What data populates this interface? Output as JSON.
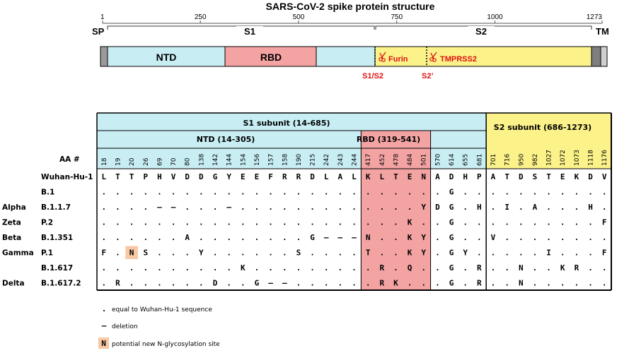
{
  "protein": {
    "title": "SARS-CoV-2 spike protein structure",
    "length": 1273,
    "ruler_ticks": [
      "1",
      "250",
      "500",
      "750",
      "1000",
      "1273"
    ],
    "labels": {
      "sp": "SP",
      "s1": "S1",
      "s2": "S2",
      "tm": "TM"
    },
    "domains": {
      "ntd": "NTD",
      "rbd": "RBD",
      "furin": "Furin",
      "tmprss2": "TMPRSS2",
      "s1s2": "S1/S2",
      "s2prime": "S2’"
    },
    "colors": {
      "ntd": "#c8eef4",
      "rbd": "#f4a3a3",
      "s2": "#fbf28a",
      "sp_tm": "#9a9a9a",
      "cleavage": "#e01010",
      "glyco": "#f8c8a4"
    }
  },
  "table": {
    "s1_header": "S1 subunit (14-685)",
    "s2_header": "S2 subunit (686-1273)",
    "ntd_header": "NTD (14-305)",
    "rbd_header": "RBD (319-541)",
    "aa_label": "AA #",
    "positions": [
      "18",
      "19",
      "20",
      "26",
      "69",
      "70",
      "80",
      "138",
      "142",
      "144",
      "154",
      "156",
      "157",
      "158",
      "190",
      "215",
      "242",
      "243",
      "244",
      "417",
      "452",
      "478",
      "484",
      "501",
      "570",
      "614",
      "655",
      "681",
      "701",
      "716",
      "950",
      "982",
      "1027",
      "1072",
      "1073",
      "1118",
      "1176"
    ],
    "rows": [
      {
        "lineage": "",
        "name": "Wuhan-Hu-1",
        "cells": [
          "L",
          "T",
          "T",
          "P",
          "H",
          "V",
          "D",
          "D",
          "G",
          "Y",
          "E",
          "E",
          "F",
          "R",
          "R",
          "D",
          "L",
          "A",
          "L",
          "K",
          "L",
          "T",
          "E",
          "N",
          "A",
          "D",
          "H",
          "P",
          "A",
          "T",
          "D",
          "S",
          "T",
          "E",
          "K",
          "D",
          "V"
        ]
      },
      {
        "lineage": "",
        "name": "B.1",
        "cells": [
          ".",
          ".",
          ".",
          ".",
          ".",
          ".",
          ".",
          ".",
          ".",
          ".",
          ".",
          ".",
          ".",
          ".",
          ".",
          ".",
          ".",
          ".",
          ".",
          ".",
          ".",
          ".",
          ".",
          ".",
          ".",
          "G",
          ".",
          ".",
          ".",
          ".",
          ".",
          ".",
          ".",
          ".",
          ".",
          ".",
          "."
        ]
      },
      {
        "lineage": "Alpha",
        "name": "B.1.1.7",
        "cells": [
          ".",
          ".",
          ".",
          ".",
          "–",
          "–",
          ".",
          ".",
          ".",
          "–",
          ".",
          ".",
          ".",
          ".",
          ".",
          ".",
          ".",
          ".",
          ".",
          ".",
          ".",
          ".",
          ".",
          "Y",
          "D",
          "G",
          ".",
          "H",
          ".",
          "I",
          ".",
          "A",
          ".",
          ".",
          ".",
          "H",
          "."
        ]
      },
      {
        "lineage": "Zeta",
        "name": "P.2",
        "cells": [
          ".",
          ".",
          ".",
          ".",
          ".",
          ".",
          ".",
          ".",
          ".",
          ".",
          ".",
          ".",
          ".",
          ".",
          ".",
          ".",
          ".",
          ".",
          ".",
          ".",
          ".",
          ".",
          "K",
          ".",
          ".",
          "G",
          ".",
          ".",
          ".",
          ".",
          ".",
          ".",
          ".",
          ".",
          ".",
          ".",
          "F"
        ]
      },
      {
        "lineage": "Beta",
        "name": "B.1.351",
        "cells": [
          ".",
          ".",
          ".",
          ".",
          ".",
          ".",
          "A",
          ".",
          ".",
          ".",
          ".",
          ".",
          ".",
          ".",
          ".",
          "G",
          "–",
          "–",
          "–",
          "N",
          ".",
          ".",
          "K",
          "Y",
          ".",
          "G",
          ".",
          ".",
          "V",
          ".",
          ".",
          ".",
          ".",
          ".",
          ".",
          ".",
          "."
        ]
      },
      {
        "lineage": "Gamma",
        "name": "P.1",
        "cells": [
          "F",
          ".",
          "N",
          "S",
          ".",
          ".",
          ".",
          "Y",
          ".",
          ".",
          ".",
          ".",
          ".",
          ".",
          "S",
          ".",
          ".",
          ".",
          ".",
          "T",
          ".",
          ".",
          "K",
          "Y",
          ".",
          "G",
          "Y",
          ".",
          ".",
          ".",
          ".",
          ".",
          "I",
          ".",
          ".",
          ".",
          "F"
        ]
      },
      {
        "lineage": "",
        "name": "B.1.617",
        "cells": [
          ".",
          ".",
          ".",
          ".",
          ".",
          ".",
          ".",
          ".",
          ".",
          ".",
          "K",
          ".",
          ".",
          ".",
          ".",
          ".",
          ".",
          ".",
          ".",
          ".",
          "R",
          ".",
          "Q",
          ".",
          ".",
          "G",
          ".",
          "R",
          ".",
          ".",
          "N",
          ".",
          ".",
          "K",
          "R",
          ".",
          "."
        ]
      },
      {
        "lineage": "Delta",
        "name": "B.1.617.2",
        "cells": [
          ".",
          "R",
          ".",
          ".",
          ".",
          ".",
          ".",
          ".",
          "D",
          ".",
          ".",
          "G",
          "–",
          "–",
          ".",
          ".",
          ".",
          ".",
          ".",
          ".",
          "R",
          "K",
          ".",
          ".",
          ".",
          "G",
          ".",
          "R",
          ".",
          ".",
          "N",
          ".",
          ".",
          ".",
          ".",
          ".",
          "."
        ]
      }
    ],
    "glyco_cell": {
      "row": 5,
      "col": 2
    }
  },
  "legend": {
    "dot_symbol": ".",
    "dot_text": "equal to Wuhan-Hu-1 sequence",
    "dash_symbol": "–",
    "dash_text": "deletion",
    "glyco_symbol": "N",
    "glyco_text": "potential new N-glycosylation site"
  }
}
